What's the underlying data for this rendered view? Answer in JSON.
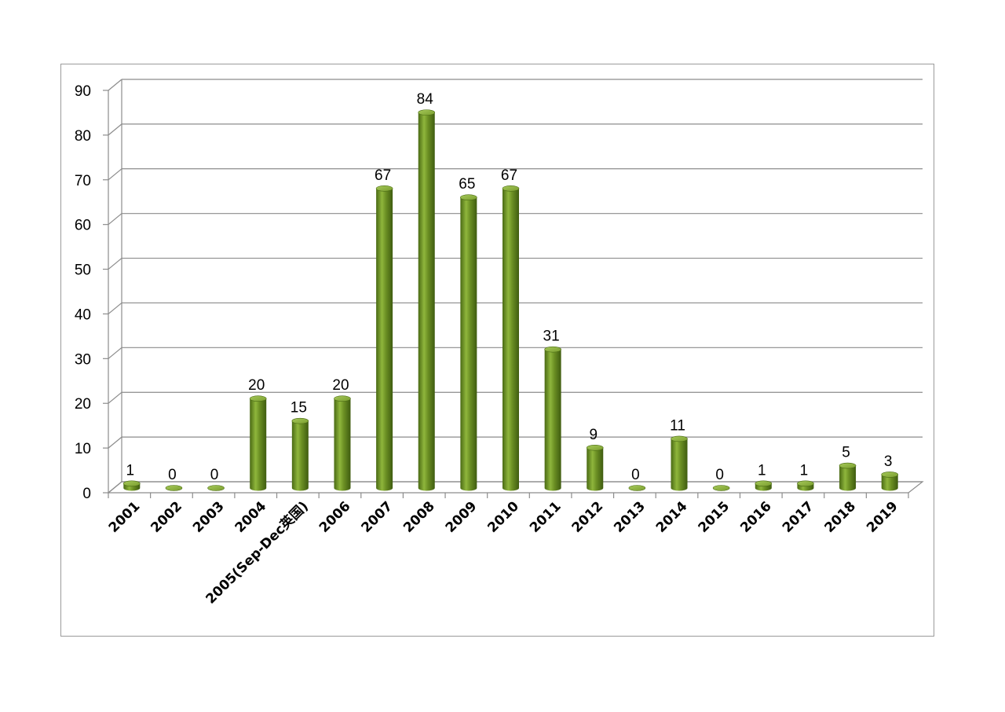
{
  "chart_data": {
    "type": "bar",
    "categories": [
      "2001",
      "2002",
      "2003",
      "2004",
      "2005(Sep-Dec英国)",
      "2006",
      "2007",
      "2008",
      "2009",
      "2010",
      "2011",
      "2012",
      "2013",
      "2014",
      "2015",
      "2016",
      "2017",
      "2018",
      "2019"
    ],
    "values": [
      1,
      0,
      0,
      20,
      15,
      20,
      67,
      84,
      65,
      67,
      31,
      9,
      0,
      11,
      0,
      1,
      1,
      5,
      3
    ],
    "ylim": [
      0,
      90
    ],
    "yticks": [
      0,
      10,
      20,
      30,
      40,
      50,
      60,
      70,
      80,
      90
    ],
    "grid": true,
    "bar_color": "#6a8e23",
    "style": "3d-cylinder"
  }
}
